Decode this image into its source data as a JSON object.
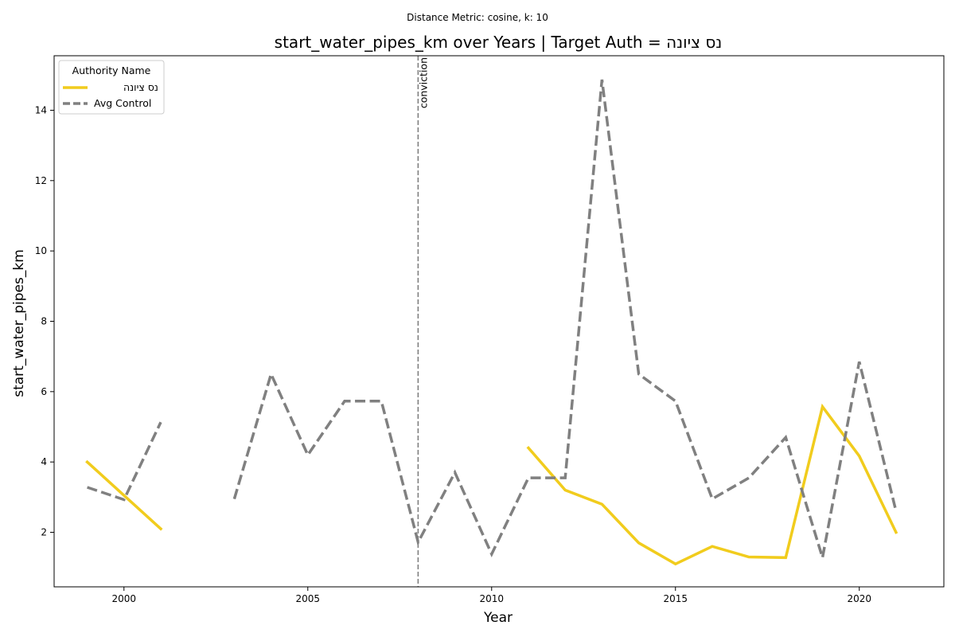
{
  "chart_data": {
    "type": "line",
    "suptitle": "Distance Metric: cosine, k: 10",
    "title": "start_water_pipes_km over Years | Target Auth = נס ציונה",
    "xlabel": "Year",
    "ylabel": "start_water_pipes_km",
    "xlim": [
      1998.1,
      2022.3
    ],
    "ylim": [
      0.45,
      15.55
    ],
    "xticks": [
      2000,
      2005,
      2010,
      2015,
      2020
    ],
    "yticks": [
      2,
      4,
      6,
      8,
      10,
      12,
      14
    ],
    "grid": false,
    "legend": {
      "title": "Authority Name",
      "placement": "top-left"
    },
    "annotation": {
      "x": 2008,
      "text": "conviction",
      "color": "#808080"
    },
    "series": [
      {
        "name": "נס ציונה",
        "color": "#f1cc1d",
        "style": "solid",
        "points": [
          [
            1999,
            4.0
          ],
          [
            2000,
            3.05
          ],
          [
            2001,
            2.1
          ],
          [
            2011,
            4.4
          ],
          [
            2012,
            3.2
          ],
          [
            2013,
            2.8
          ],
          [
            2014,
            1.7
          ],
          [
            2015,
            1.1
          ],
          [
            2016,
            1.6
          ],
          [
            2017,
            1.3
          ],
          [
            2018,
            1.28
          ],
          [
            2019,
            5.57
          ],
          [
            2020,
            4.17
          ],
          [
            2021,
            2.0
          ]
        ],
        "segments": [
          [
            0,
            3
          ],
          [
            3,
            14
          ]
        ]
      },
      {
        "name": "Avg Control",
        "color": "#808080",
        "style": "dashed",
        "points": [
          [
            1999,
            3.28
          ],
          [
            2000,
            2.93
          ],
          [
            2001,
            5.13
          ],
          [
            2003,
            2.95
          ],
          [
            2004,
            6.5
          ],
          [
            2005,
            4.2
          ],
          [
            2006,
            5.73
          ],
          [
            2007,
            5.73
          ],
          [
            2008,
            1.72
          ],
          [
            2009,
            3.7
          ],
          [
            2010,
            1.38
          ],
          [
            2011,
            3.55
          ],
          [
            2012,
            3.55
          ],
          [
            2013,
            14.87
          ],
          [
            2014,
            6.5
          ],
          [
            2015,
            5.73
          ],
          [
            2016,
            2.95
          ],
          [
            2017,
            3.55
          ],
          [
            2018,
            4.7
          ],
          [
            2019,
            1.28
          ],
          [
            2020,
            6.85
          ],
          [
            2021,
            2.6
          ]
        ],
        "segments": [
          [
            0,
            3
          ],
          [
            3,
            22
          ]
        ]
      }
    ]
  }
}
